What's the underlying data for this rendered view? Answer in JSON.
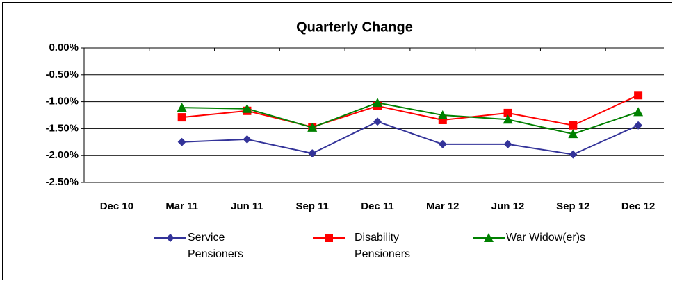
{
  "chart_data": {
    "type": "line",
    "title": "Quarterly Change",
    "categories": [
      "Dec 10",
      "Mar 11",
      "Jun 11",
      "Sep 11",
      "Dec 11",
      "Mar 12",
      "Jun 12",
      "Sep 12",
      "Dec 12"
    ],
    "series": [
      {
        "name": "Service Pensioners",
        "color": "#333399",
        "marker": "diamond",
        "values": [
          null,
          -1.75,
          -1.7,
          -1.96,
          -1.37,
          -1.79,
          -1.79,
          -1.98,
          -1.44
        ]
      },
      {
        "name": "Disability Pensioners",
        "color": "#ff0000",
        "marker": "square",
        "values": [
          null,
          -1.29,
          -1.17,
          -1.47,
          -1.08,
          -1.34,
          -1.21,
          -1.44,
          -0.88
        ]
      },
      {
        "name": "War Widow(er)s",
        "color": "#008000",
        "marker": "triangle",
        "values": [
          null,
          -1.11,
          -1.13,
          -1.48,
          -1.02,
          -1.25,
          -1.33,
          -1.6,
          -1.19
        ]
      }
    ],
    "ylim": [
      -2.5,
      0
    ],
    "yticks": [
      {
        "value": -2.5,
        "label": "-2.50%"
      },
      {
        "value": -2.0,
        "label": "-2.00%"
      },
      {
        "value": -1.5,
        "label": "-1.50%"
      },
      {
        "value": -1.0,
        "label": "-1.00%"
      },
      {
        "value": -0.5,
        "label": "-0.50%"
      },
      {
        "value": 0,
        "label": "0.00%"
      }
    ],
    "grid": true,
    "legend": "bottom"
  }
}
